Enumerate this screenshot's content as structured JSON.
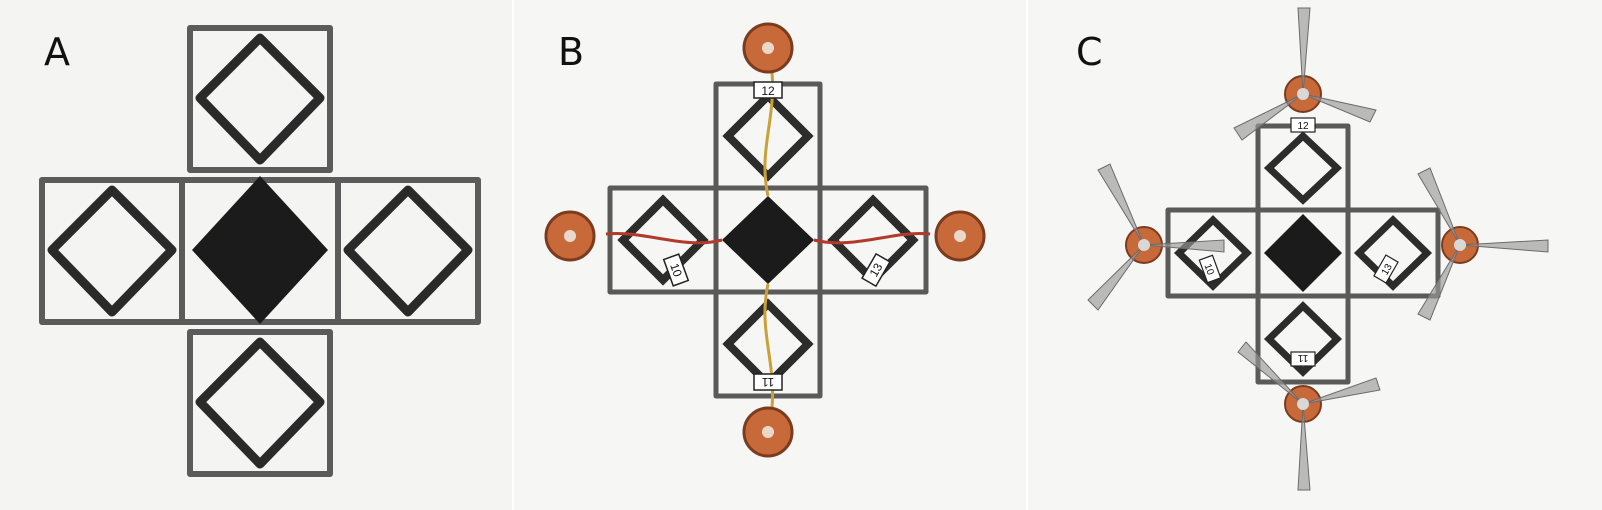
{
  "panels": [
    {
      "label": "A"
    },
    {
      "label": "B",
      "module_numbers": [
        "12",
        "10",
        "13",
        "11"
      ]
    },
    {
      "label": "C",
      "module_numbers": [
        "12",
        "10",
        "13",
        "11"
      ]
    }
  ]
}
